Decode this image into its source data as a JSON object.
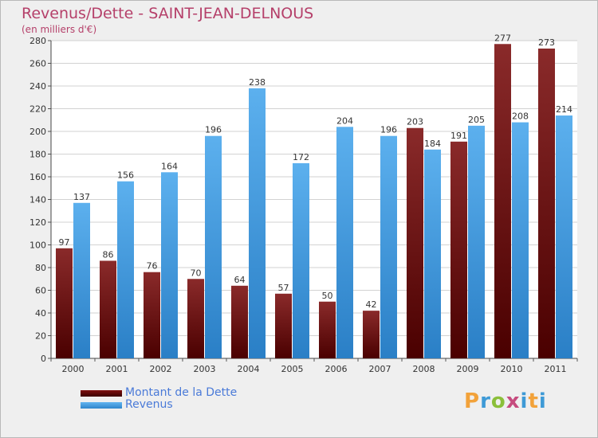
{
  "header": {
    "title": "Revenus/Dette - SAINT-JEAN-DELNOUS",
    "subtitle": "(en milliers d'€)"
  },
  "chart_data": {
    "type": "bar",
    "title": "Revenus/Dette - SAINT-JEAN-DELNOUS",
    "subtitle": "(en milliers d'€)",
    "categories": [
      "2000",
      "2001",
      "2002",
      "2003",
      "2004",
      "2005",
      "2006",
      "2007",
      "2008",
      "2009",
      "2010",
      "2011"
    ],
    "series": [
      {
        "name": "Montant de la Dette",
        "color": "#7e1010",
        "values": [
          97,
          86,
          76,
          70,
          64,
          57,
          50,
          42,
          203,
          191,
          277,
          273
        ]
      },
      {
        "name": "Revenus",
        "color": "#4aa3e6",
        "values": [
          137,
          156,
          164,
          196,
          238,
          172,
          204,
          196,
          184,
          205,
          208,
          214
        ]
      }
    ],
    "ylim": [
      0,
      280
    ],
    "yticks": [
      0,
      20,
      40,
      60,
      80,
      100,
      120,
      140,
      160,
      180,
      200,
      220,
      240,
      260,
      280
    ],
    "grid": true,
    "legend_position": "bottom-left"
  },
  "legend": {
    "items": [
      {
        "label": "Montant de la Dette",
        "color": "#7e1010"
      },
      {
        "label": "Revenus",
        "color": "#4aa3e6"
      }
    ]
  },
  "logo": {
    "text": "Proxiti"
  }
}
